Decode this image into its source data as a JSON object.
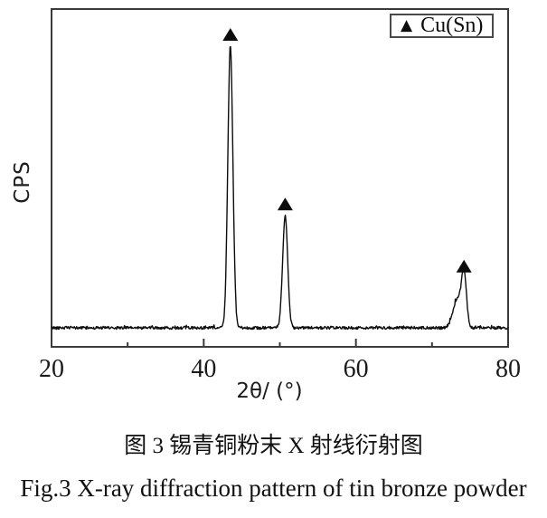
{
  "captions": {
    "chinese": "图 3 锡青铜粉末 X 射线衍射图",
    "english": "Fig.3 X-ray diffraction pattern of tin bronze powder"
  },
  "legend": {
    "marker": "▲",
    "label": "Cu(Sn)"
  },
  "chart_data": {
    "type": "line",
    "title": "",
    "xlabel": "2θ/ (°)",
    "ylabel": "CPS",
    "xlim": [
      20,
      80
    ],
    "x_major_ticks": [
      20,
      40,
      60,
      80
    ],
    "x_minor_ticks": [
      30,
      50,
      70
    ],
    "y_axis": "unlabeled intensity axis (no ticks, no numbers)",
    "grid": false,
    "legend_position": "top-right inside plot frame",
    "line_color": "#0d0d0d",
    "frame_color": "#3a3a3a",
    "series": [
      {
        "name": "Cu(Sn)",
        "marker_glyph": "▲",
        "description": "XRD pattern: flat noisy background with three marked diffraction peaks",
        "peaks": [
          {
            "two_theta": 43.5,
            "rel_intensity": 1.0,
            "sigma_deg": 0.33,
            "marked": true
          },
          {
            "two_theta": 50.7,
            "rel_intensity": 0.4,
            "sigma_deg": 0.33,
            "marked": true
          },
          {
            "two_theta": 73.3,
            "rel_intensity": 0.1,
            "sigma_deg": 0.55,
            "marked": false
          },
          {
            "two_theta": 74.2,
            "rel_intensity": 0.18,
            "sigma_deg": 0.33,
            "marked": true
          }
        ]
      }
    ]
  }
}
